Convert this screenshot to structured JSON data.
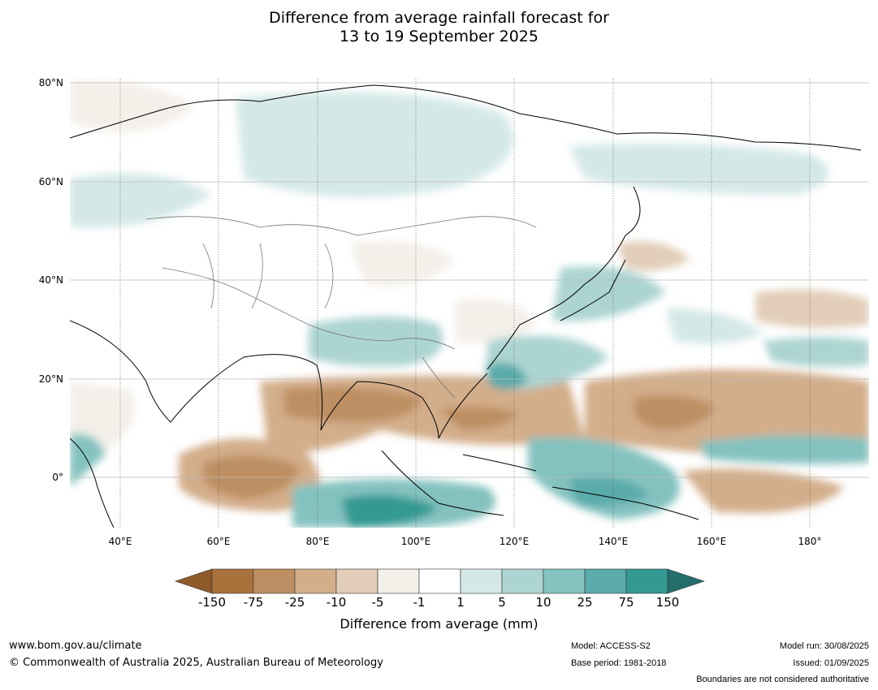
{
  "title": {
    "line1": "Difference from average rainfall forecast for",
    "line2": "13 to 19 September 2025"
  },
  "map": {
    "lat_labels": [
      "80°N",
      "60°N",
      "40°N",
      "20°N",
      "0°"
    ],
    "lon_labels": [
      "40°E",
      "60°E",
      "80°E",
      "100°E",
      "120°E",
      "140°E",
      "160°E",
      "180°"
    ],
    "lat_range": [
      -10,
      81
    ],
    "lon_range": [
      30,
      192
    ]
  },
  "colorbar": {
    "title": "Difference from average (mm)",
    "ticks": [
      "-150",
      "-75",
      "-25",
      "-10",
      "-5",
      "-1",
      "1",
      "5",
      "10",
      "25",
      "75",
      "150"
    ],
    "colors": [
      "#a8723d",
      "#bd8f62",
      "#d3ae8b",
      "#e2cdb8",
      "#f3efe9",
      "#ffffff",
      "#d4e8e7",
      "#acd4d2",
      "#84c2bf",
      "#5aabaa",
      "#339993"
    ],
    "extend_low_color": "#8f5a2a",
    "extend_high_color": "#246f6c"
  },
  "footer": {
    "url": "www.bom.gov.au/climate",
    "copyright": "© Commonwealth of Australia 2025, Australian Bureau of Meteorology",
    "model": "Model: ACCESS-S2",
    "base_period": "Base period: 1981-2018",
    "model_run": "Model run: 30/08/2025",
    "issued": "Issued: 01/09/2025",
    "disclaimer": "Boundaries are not considered authoritative"
  }
}
